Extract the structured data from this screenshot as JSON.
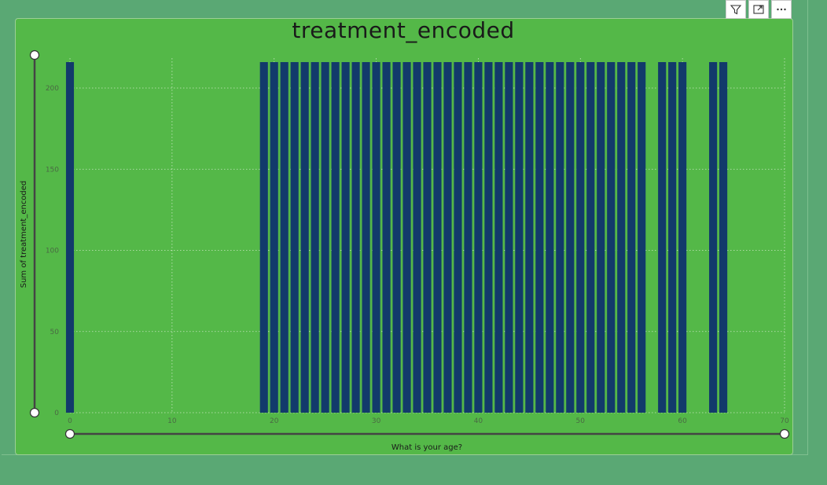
{
  "header_buttons": [
    {
      "name": "filter-icon"
    },
    {
      "name": "focus-mode-icon"
    },
    {
      "name": "more-options-icon"
    }
  ],
  "chart_data": {
    "type": "bar",
    "title": "treatment_encoded",
    "xlabel": "What is your age?",
    "ylabel": "Sum of treatment_encoded",
    "x": [
      0,
      19,
      20,
      21,
      22,
      23,
      24,
      25,
      26,
      27,
      28,
      29,
      30,
      31,
      32,
      33,
      34,
      35,
      36,
      37,
      38,
      39,
      40,
      41,
      42,
      43,
      44,
      45,
      46,
      47,
      48,
      49,
      50,
      51,
      52,
      53,
      54,
      55,
      56,
      58,
      59,
      60,
      63,
      64
    ],
    "values": [
      216,
      216,
      216,
      216,
      216,
      216,
      216,
      216,
      216,
      216,
      216,
      216,
      216,
      216,
      216,
      216,
      216,
      216,
      216,
      216,
      216,
      216,
      216,
      216,
      216,
      216,
      216,
      216,
      216,
      216,
      216,
      216,
      216,
      216,
      216,
      216,
      216,
      216,
      216,
      216,
      216,
      216,
      216,
      216
    ],
    "xlim": [
      0,
      70
    ],
    "ylim": [
      0,
      216
    ],
    "xticks": [
      "0",
      "10",
      "20",
      "30",
      "40",
      "50",
      "60",
      "70"
    ],
    "yticks": [
      "0",
      "50",
      "100",
      "150",
      "200"
    ],
    "grid": true,
    "colors": {
      "bar": "#123a6b",
      "grid": "#c8e6c0",
      "axis_handle": "#444444"
    }
  }
}
